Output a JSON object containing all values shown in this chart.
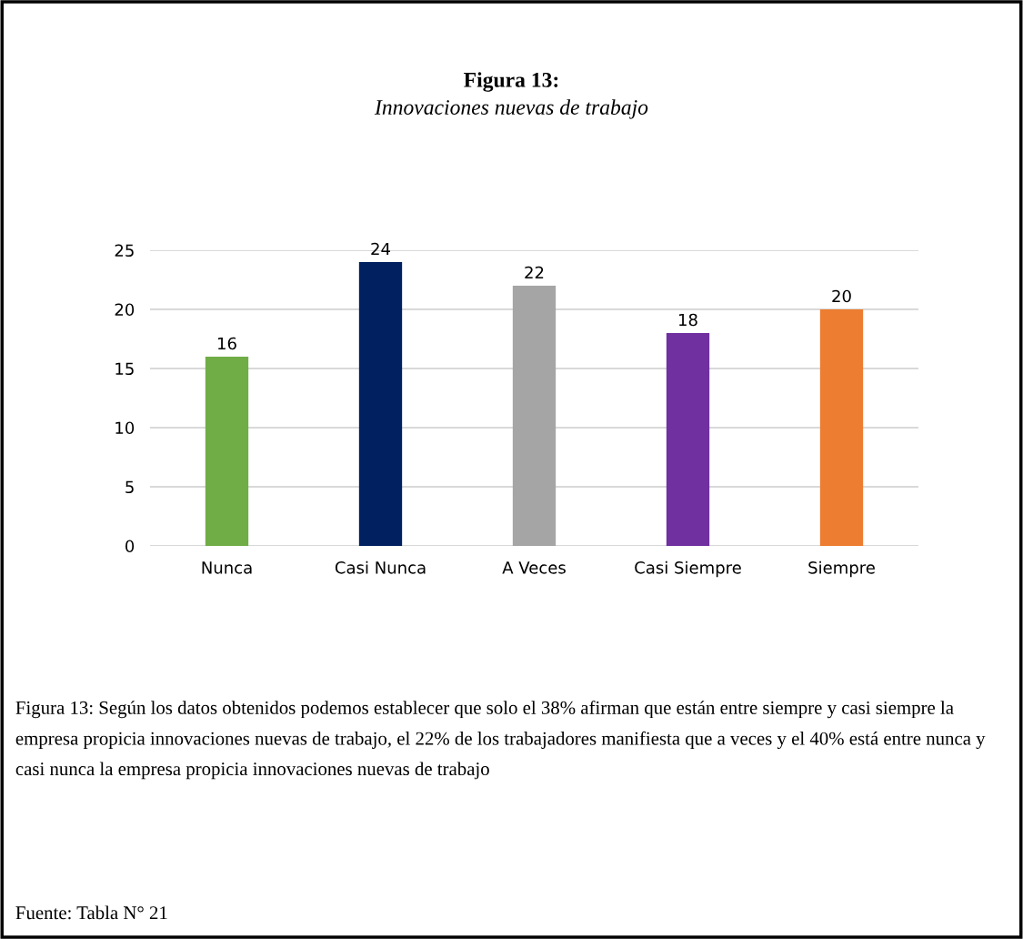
{
  "chart_data": {
    "type": "bar",
    "title": "Figura 13:",
    "subtitle": "Innovaciones nuevas de trabajo",
    "categories": [
      "Nunca",
      "Casi Nunca",
      "A Veces",
      "Casi Siempre",
      "Siempre"
    ],
    "values": [
      16,
      24,
      22,
      18,
      20
    ],
    "colors": [
      "#70ad47",
      "#002060",
      "#a5a5a5",
      "#7030a0",
      "#ed7d31"
    ],
    "ylim": [
      0,
      25
    ],
    "yticks": [
      0,
      5,
      10,
      15,
      20,
      25
    ],
    "grid": "y",
    "data_labels": true,
    "annotations": [
      "Figura 13: Según los datos obtenidos podemos establecer que solo el 38% afirman que están entre siempre y casi siempre la empresa propicia innovaciones nuevas de trabajo, el 22% de los trabajadores manifiesta que a veces y el 40% está entre nunca y casi nunca la empresa propicia innovaciones nuevas de trabajo",
      "Fuente: Tabla N° 21"
    ]
  }
}
